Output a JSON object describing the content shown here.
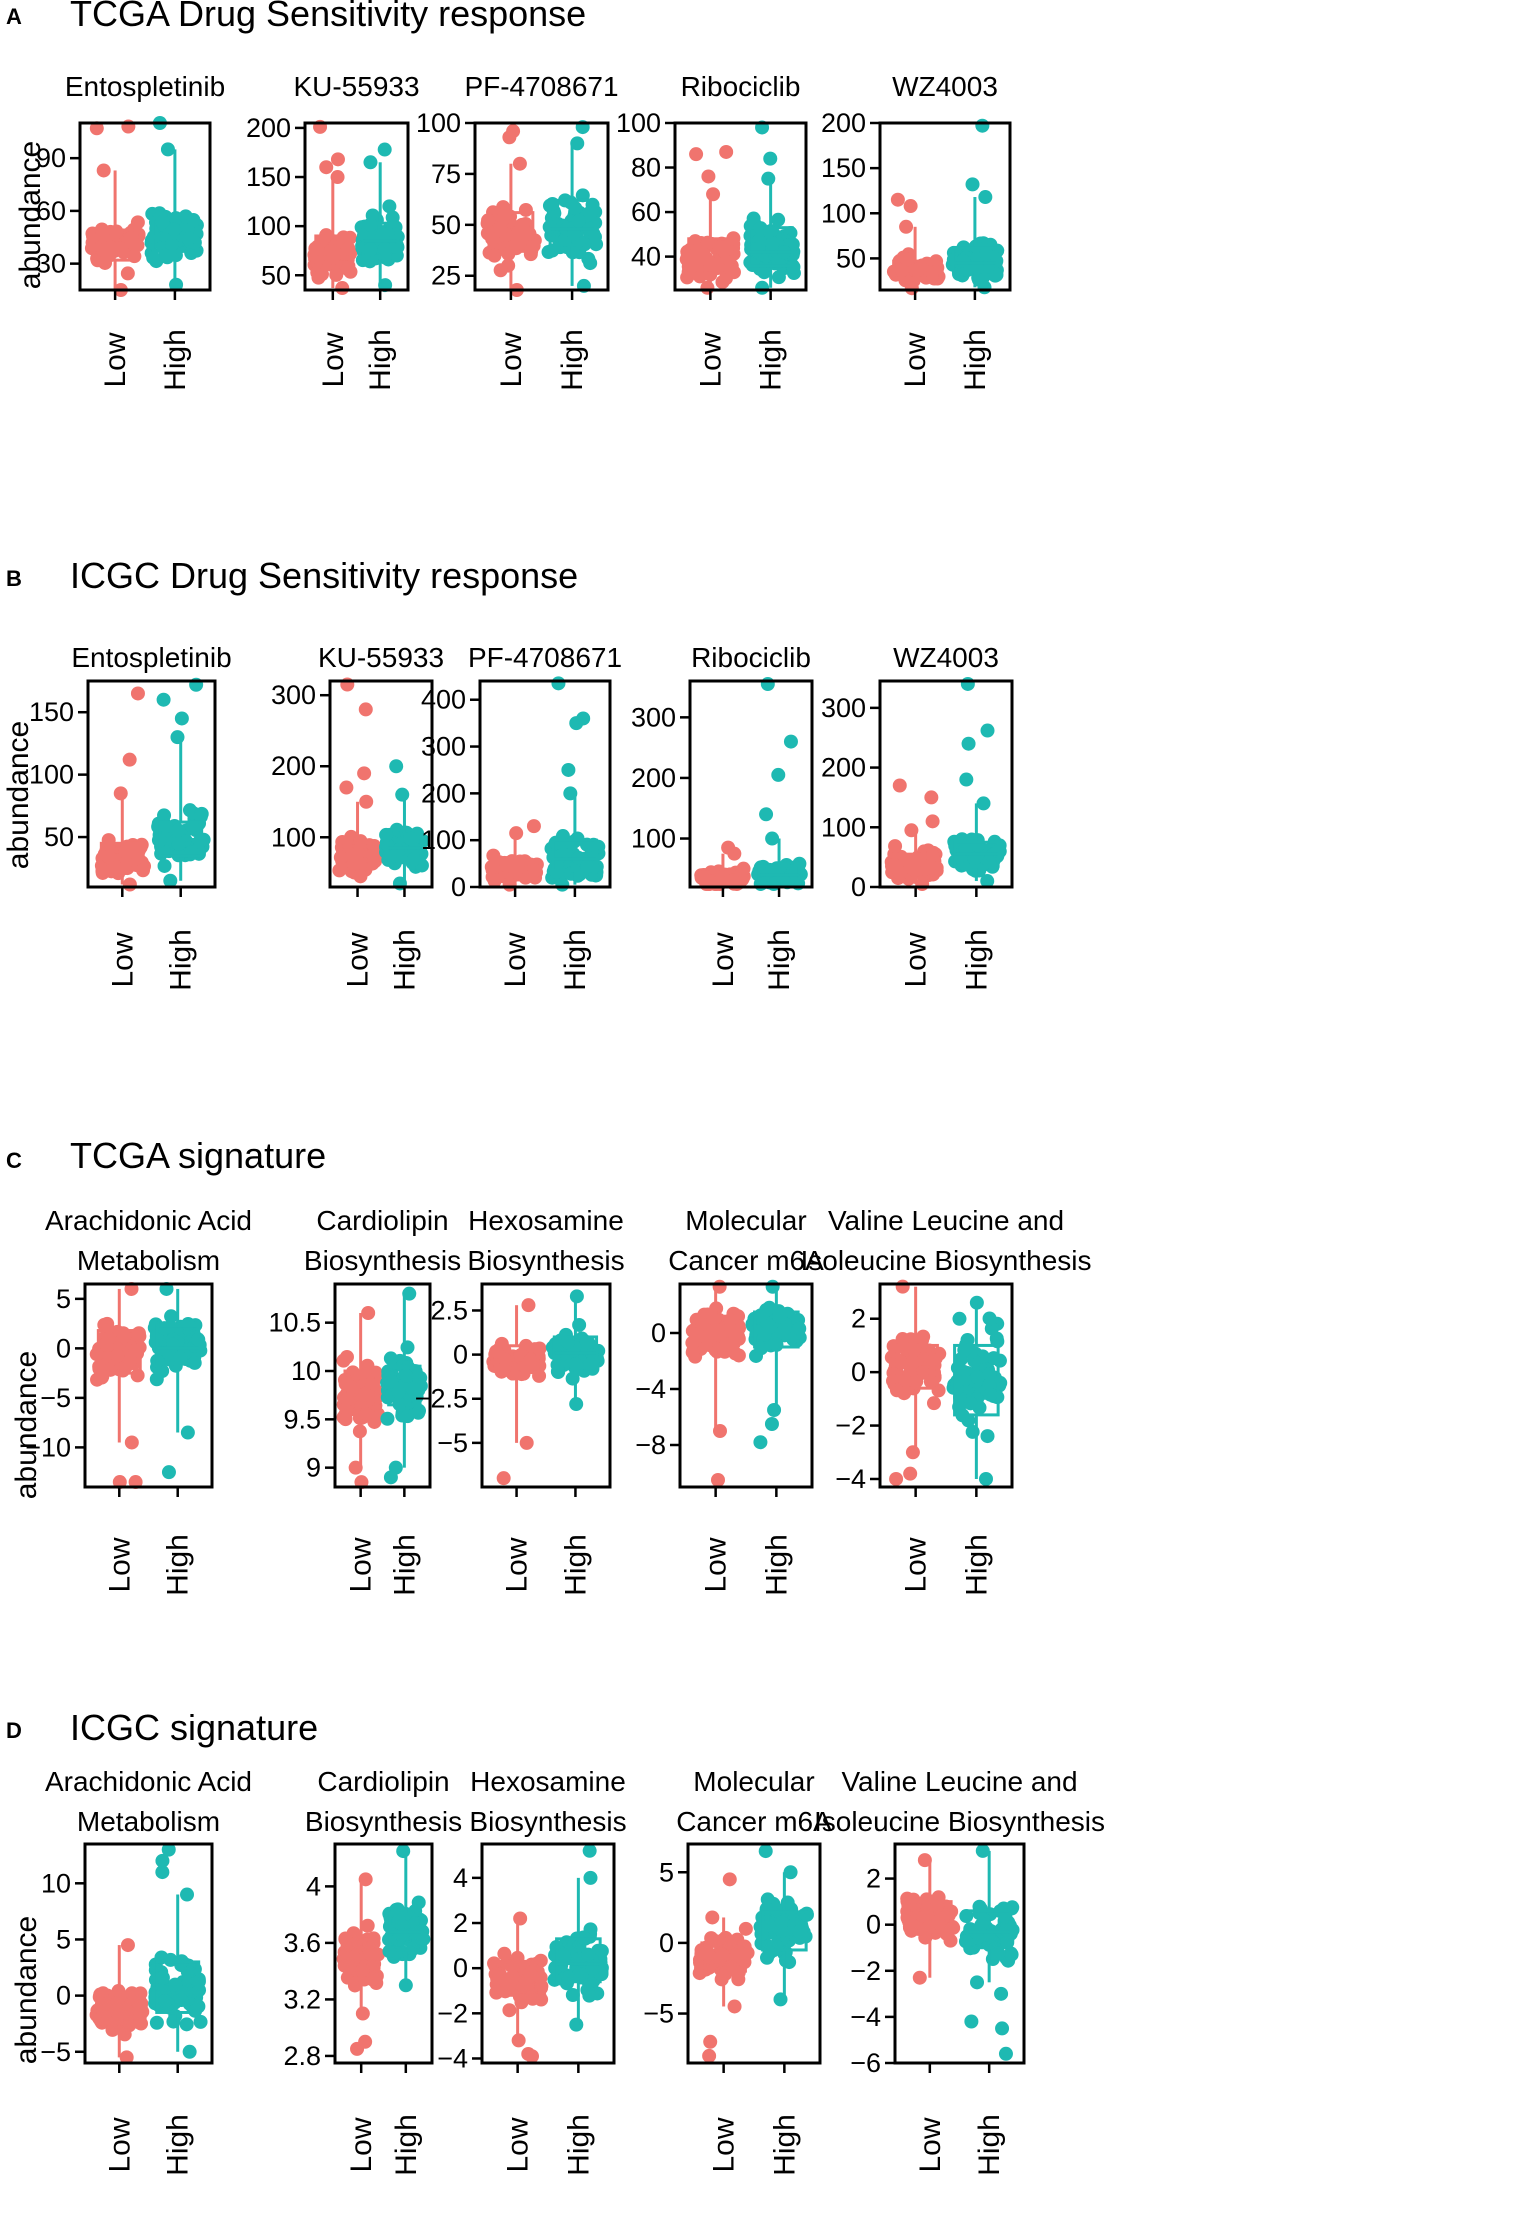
{
  "colors": {
    "low": "#F0746E",
    "high": "#1EB9B2",
    "axis": "#000000"
  },
  "groups": [
    "Low",
    "High"
  ],
  "y_label": "abundance",
  "panels": [
    {
      "letter": "A",
      "title": "TCGA Drug Sensitivity response"
    },
    {
      "letter": "B",
      "title": "ICGC Drug Sensitivity response"
    },
    {
      "letter": "C",
      "title": "TCGA signature"
    },
    {
      "letter": "D",
      "title": "ICGC signature"
    }
  ],
  "chart_data": [
    {
      "panel": "A",
      "type": "box",
      "plots": [
        {
          "title": [
            "Entospletinib"
          ],
          "ylim": [
            15,
            110
          ],
          "ticks": [
            30,
            60,
            90
          ],
          "low": {
            "min": 15,
            "q1": 32,
            "median": 40,
            "q3": 49,
            "max": 83,
            "outliers": [
              107,
              108
            ]
          },
          "high": {
            "min": 18,
            "q1": 37,
            "median": 45,
            "q3": 56,
            "max": 95,
            "outliers": [
              110
            ]
          }
        },
        {
          "title": [
            "KU-55933"
          ],
          "ylim": [
            35,
            205
          ],
          "ticks": [
            50,
            100,
            150,
            200
          ],
          "low": {
            "min": 37,
            "q1": 63,
            "median": 72,
            "q3": 90,
            "max": 150,
            "outliers": [
              160,
              168,
              201
            ]
          },
          "high": {
            "min": 40,
            "q1": 68,
            "median": 85,
            "q3": 103,
            "max": 165,
            "outliers": [
              178
            ]
          }
        },
        {
          "title": [
            "PF-4708671"
          ],
          "ylim": [
            18,
            100
          ],
          "ticks": [
            25,
            50,
            75,
            100
          ],
          "low": {
            "min": 18,
            "q1": 37,
            "median": 45,
            "q3": 56,
            "max": 80,
            "outliers": [
              93,
              96
            ]
          },
          "high": {
            "min": 20,
            "q1": 40,
            "median": 48,
            "q3": 62,
            "max": 90,
            "outliers": [
              98
            ]
          }
        },
        {
          "title": [
            "Ribociclib"
          ],
          "ylim": [
            25,
            100
          ],
          "ticks": [
            40,
            60,
            80,
            100
          ],
          "low": {
            "min": 26,
            "q1": 34,
            "median": 38,
            "q3": 48,
            "max": 68,
            "outliers": [
              76,
              86,
              87
            ]
          },
          "high": {
            "min": 26,
            "q1": 36,
            "median": 42,
            "q3": 53,
            "max": 75,
            "outliers": [
              84,
              98
            ]
          }
        },
        {
          "title": [
            "WZ4003"
          ],
          "ylim": [
            15,
            200
          ],
          "ticks": [
            50,
            100,
            150,
            200
          ],
          "low": {
            "min": 17,
            "q1": 28,
            "median": 38,
            "q3": 47,
            "max": 85,
            "outliers": [
              108,
              115
            ]
          },
          "high": {
            "min": 18,
            "q1": 35,
            "median": 45,
            "q3": 62,
            "max": 118,
            "outliers": [
              132,
              197
            ]
          }
        }
      ]
    },
    {
      "panel": "B",
      "type": "box",
      "plots": [
        {
          "title": [
            "Entospletinib"
          ],
          "ylim": [
            10,
            175
          ],
          "ticks": [
            50,
            100,
            150
          ],
          "low": {
            "min": 12,
            "q1": 25,
            "median": 35,
            "q3": 45,
            "max": 85,
            "outliers": [
              112,
              165
            ]
          },
          "high": {
            "min": 15,
            "q1": 35,
            "median": 48,
            "q3": 62,
            "max": 130,
            "outliers": [
              145,
              160,
              172
            ]
          }
        },
        {
          "title": [
            "KU-55933"
          ],
          "ylim": [
            30,
            320
          ],
          "ticks": [
            100,
            200,
            300
          ],
          "low": {
            "min": 45,
            "q1": 60,
            "median": 75,
            "q3": 92,
            "max": 150,
            "outliers": [
              170,
              190,
              280,
              315
            ]
          },
          "high": {
            "min": 35,
            "q1": 70,
            "median": 85,
            "q3": 105,
            "max": 160,
            "outliers": [
              200
            ]
          }
        },
        {
          "title": [
            "PF-4708671"
          ],
          "ylim": [
            0,
            440
          ],
          "ticks": [
            0,
            100,
            200,
            300,
            400
          ],
          "low": {
            "min": 5,
            "q1": 25,
            "median": 40,
            "q3": 55,
            "max": 115,
            "outliers": [
              130
            ]
          },
          "high": {
            "min": 5,
            "q1": 35,
            "median": 60,
            "q3": 100,
            "max": 200,
            "outliers": [
              250,
              350,
              360,
              435
            ]
          }
        },
        {
          "title": [
            "Ribociclib"
          ],
          "ylim": [
            20,
            360
          ],
          "ticks": [
            100,
            200,
            300
          ],
          "low": {
            "min": 25,
            "q1": 30,
            "median": 35,
            "q3": 45,
            "max": 75,
            "outliers": [
              85
            ]
          },
          "high": {
            "min": 25,
            "q1": 32,
            "median": 40,
            "q3": 55,
            "max": 100,
            "outliers": [
              140,
              205,
              260,
              355
            ]
          }
        },
        {
          "title": [
            "WZ4003"
          ],
          "ylim": [
            0,
            345
          ],
          "ticks": [
            0,
            100,
            200,
            300
          ],
          "low": {
            "min": 5,
            "q1": 25,
            "median": 38,
            "q3": 55,
            "max": 95,
            "outliers": [
              110,
              150,
              170
            ]
          },
          "high": {
            "min": 10,
            "q1": 35,
            "median": 55,
            "q3": 75,
            "max": 140,
            "outliers": [
              180,
              240,
              262,
              340
            ]
          }
        }
      ]
    },
    {
      "panel": "C",
      "type": "box",
      "plots": [
        {
          "title": [
            "Arachidonic Acid",
            "Metabolism"
          ],
          "ylim": [
            -14,
            6.5
          ],
          "ticks": [
            -10,
            -5,
            0,
            5
          ],
          "low": {
            "min": -9.5,
            "q1": -2.5,
            "median": -0.5,
            "q3": 1.8,
            "max": 6,
            "outliers": [
              -13.5,
              -13.5
            ]
          },
          "high": {
            "min": -8.5,
            "q1": -1.5,
            "median": 0,
            "q3": 2.3,
            "max": 6,
            "outliers": [
              -12.5
            ]
          }
        },
        {
          "title": [
            "Cardiolipin",
            "Biosynthesis"
          ],
          "ylim": [
            8.8,
            10.9
          ],
          "ticks": [
            9.0,
            9.5,
            10.0,
            10.5
          ],
          "low": {
            "min": 9.0,
            "q1": 9.55,
            "median": 9.75,
            "q3": 10.0,
            "max": 10.6,
            "outliers": [
              8.85
            ]
          },
          "high": {
            "min": 9.0,
            "q1": 9.65,
            "median": 9.85,
            "q3": 10.05,
            "max": 10.8,
            "outliers": [
              8.9
            ]
          }
        },
        {
          "title": [
            "Hexosamine",
            "Biosynthesis"
          ],
          "ylim": [
            -7.5,
            4
          ],
          "ticks": [
            -5.0,
            -2.5,
            0.0,
            2.5
          ],
          "low": {
            "min": -5.0,
            "q1": -0.8,
            "median": -0.3,
            "q3": 0.5,
            "max": 2.8,
            "outliers": [
              -7
            ]
          },
          "high": {
            "min": -2.8,
            "q1": -0.6,
            "median": 0.1,
            "q3": 1.0,
            "max": 3.3,
            "outliers": []
          }
        },
        {
          "title": [
            "Molecular",
            "Cancer m6A"
          ],
          "ylim": [
            -11,
            3.5
          ],
          "ticks": [
            -8,
            -4,
            0
          ],
          "low": {
            "min": -7,
            "q1": -1.2,
            "median": 0,
            "q3": 1.2,
            "max": 3.3,
            "outliers": [
              -10.5
            ]
          },
          "high": {
            "min": -5.5,
            "q1": -1.0,
            "median": 0.2,
            "q3": 1.5,
            "max": 3.3,
            "outliers": [
              -6.5,
              -7.8
            ]
          }
        },
        {
          "title": [
            "Valine Leucine and",
            "Isoleucine Biosynthesis"
          ],
          "ylim": [
            -4.3,
            3.3
          ],
          "ticks": [
            -4,
            -2,
            0,
            2
          ],
          "low": {
            "min": -3.0,
            "q1": -0.6,
            "median": 0.3,
            "q3": 1.0,
            "max": 3.2,
            "outliers": [
              -3.8,
              -4.0
            ]
          },
          "high": {
            "min": -4.0,
            "q1": -1.6,
            "median": -0.2,
            "q3": 1.0,
            "max": 2.6,
            "outliers": []
          }
        }
      ]
    },
    {
      "panel": "D",
      "type": "box",
      "plots": [
        {
          "title": [
            "Arachidonic Acid",
            "Metabolism"
          ],
          "ylim": [
            -6,
            13.5
          ],
          "ticks": [
            -5,
            0,
            5,
            10
          ],
          "low": {
            "min": -5.5,
            "q1": -2.5,
            "median": -1.2,
            "q3": 0.3,
            "max": 4.5,
            "outliers": []
          },
          "high": {
            "min": -5,
            "q1": -1.5,
            "median": 0.5,
            "q3": 3.0,
            "max": 9,
            "outliers": [
              11,
              12,
              13
            ]
          }
        },
        {
          "title": [
            "Cardiolipin",
            "Biosynthesis"
          ],
          "ylim": [
            2.75,
            4.3
          ],
          "ticks": [
            2.8,
            3.2,
            3.6,
            4.0
          ],
          "low": {
            "min": 3.1,
            "q1": 3.35,
            "median": 3.5,
            "q3": 3.65,
            "max": 4.05,
            "outliers": [
              2.85,
              2.9
            ]
          },
          "high": {
            "min": 3.3,
            "q1": 3.55,
            "median": 3.68,
            "q3": 3.8,
            "max": 4.25,
            "outliers": []
          }
        },
        {
          "title": [
            "Hexosamine",
            "Biosynthesis"
          ],
          "ylim": [
            -4.2,
            5.5
          ],
          "ticks": [
            -4,
            -2,
            0,
            2,
            4
          ],
          "low": {
            "min": -3.2,
            "q1": -1.2,
            "median": -0.5,
            "q3": 0.3,
            "max": 2.2,
            "outliers": [
              -3.8,
              -3.9
            ]
          },
          "high": {
            "min": -2.5,
            "q1": -0.6,
            "median": 0.2,
            "q3": 1.3,
            "max": 4,
            "outliers": [
              5.2
            ]
          }
        },
        {
          "title": [
            "Molecular",
            "Cancer m6A"
          ],
          "ylim": [
            -8.5,
            7
          ],
          "ticks": [
            -5,
            0,
            5
          ],
          "low": {
            "min": -4.5,
            "q1": -2.0,
            "median": -1.0,
            "q3": 0.0,
            "max": 1.8,
            "outliers": [
              -7,
              -8,
              4.5
            ]
          },
          "high": {
            "min": -4,
            "q1": -0.5,
            "median": 1.0,
            "q3": 2.2,
            "max": 5,
            "outliers": [
              6.5
            ]
          }
        },
        {
          "title": [
            "Valine Leucine and",
            "Isoleucine Biosynthesis"
          ],
          "ylim": [
            -6,
            3.5
          ],
          "ticks": [
            -6,
            -4,
            -2,
            0,
            2
          ],
          "low": {
            "min": -2.3,
            "q1": -0.3,
            "median": 0.3,
            "q3": 1.0,
            "max": 2.8,
            "outliers": []
          },
          "high": {
            "min": -2.5,
            "q1": -1.0,
            "median": -0.3,
            "q3": 0.6,
            "max": 3.2,
            "outliers": [
              -3,
              -4.2,
              -4.5,
              -5.6
            ]
          }
        }
      ]
    }
  ]
}
